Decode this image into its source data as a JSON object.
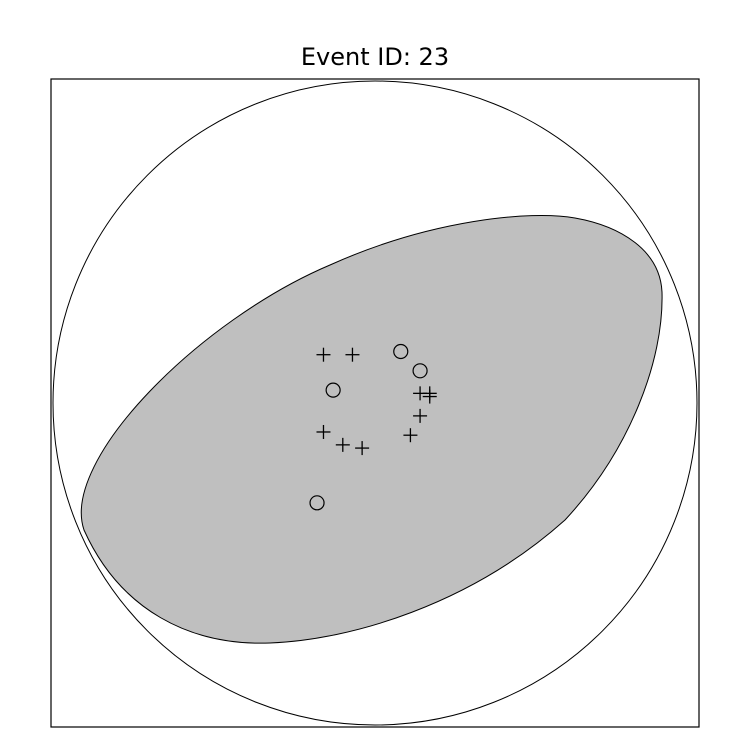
{
  "title": "Event ID: 23",
  "colors": {
    "background": "#ffffff",
    "compressional_fill": "#bfbfbf",
    "stroke": "#000000"
  },
  "symbols": {
    "compression": "plus",
    "dilatation": "circle"
  },
  "polarities": {
    "plus": [
      [
        -0.16,
        0.15
      ],
      [
        -0.07,
        0.15
      ],
      [
        0.14,
        0.03
      ],
      [
        0.17,
        0.03
      ],
      [
        0.17,
        0.02
      ],
      [
        0.14,
        -0.04
      ],
      [
        0.11,
        -0.1
      ],
      [
        -0.04,
        -0.14
      ],
      [
        -0.1,
        -0.13
      ],
      [
        -0.16,
        -0.09
      ]
    ],
    "circle": [
      [
        0.08,
        0.16
      ],
      [
        0.14,
        0.1
      ],
      [
        -0.13,
        0.04
      ],
      [
        -0.18,
        -0.31
      ]
    ]
  }
}
